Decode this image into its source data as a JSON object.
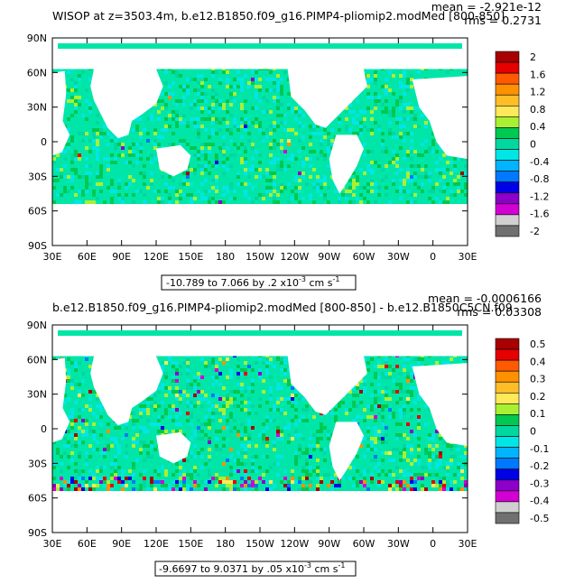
{
  "chart_data": [
    {
      "type": "heatmap",
      "title": "WISOP at z=3503.4m, b.e12.B1850.f09_g16.PIMP4-pliomip2.modMed [800-850]",
      "stats": [
        "mean = -2.921e-12",
        "rms = 0.2731"
      ],
      "range_label": "-10.789 to 7.066 by .2 x10",
      "range_exp": "-3",
      "range_units": " cm s",
      "range_units_exp": "-1",
      "x_ticks": [
        "30E",
        "60E",
        "90E",
        "120E",
        "150E",
        "180",
        "150W",
        "120W",
        "90W",
        "60W",
        "30W",
        "0",
        "30E"
      ],
      "y_ticks": [
        "90N",
        "60N",
        "30N",
        "0",
        "30S",
        "60S",
        "90S"
      ],
      "colorbar_labels": [
        "2",
        "1.6",
        "1.2",
        "0.8",
        "0.4",
        "0",
        "-0.4",
        "-0.8",
        "-1.2",
        "-1.6",
        "-2"
      ],
      "colorbar_colors": [
        "#a80000",
        "#e60000",
        "#ff5a00",
        "#ff9100",
        "#ffbe28",
        "#ffe85a",
        "#aaf032",
        "#00c850",
        "#00d8a0",
        "#00e6e6",
        "#00b4ff",
        "#0078ff",
        "#0000e6",
        "#8c00c8",
        "#d200d2",
        "#d0d0d0",
        "#707070"
      ]
    },
    {
      "type": "heatmap",
      "title": "b.e12.B1850.f09_g16.PIMP4-pliomip2.modMed [800-850] - b.e12.B1850C5CN.f09",
      "stats": [
        "mean = -0.0006166",
        "rms = 0.03308"
      ],
      "range_label": "-9.6697 to 9.0371 by .05 x10",
      "range_exp": "-3",
      "range_units": " cm s",
      "range_units_exp": "-1",
      "x_ticks": [
        "30E",
        "60E",
        "90E",
        "120E",
        "150E",
        "180",
        "150W",
        "120W",
        "90W",
        "60W",
        "30W",
        "0",
        "30E"
      ],
      "y_ticks": [
        "90N",
        "60N",
        "30N",
        "0",
        "30S",
        "60S",
        "90S"
      ],
      "colorbar_labels": [
        "0.5",
        "0.4",
        "0.3",
        "0.2",
        "0.1",
        "0",
        "-0.1",
        "-0.2",
        "-0.3",
        "-0.4",
        "-0.5"
      ],
      "colorbar_colors": [
        "#a80000",
        "#e60000",
        "#ff5a00",
        "#ff9100",
        "#ffbe28",
        "#ffe85a",
        "#aaf032",
        "#00c850",
        "#00d8a0",
        "#00e6e6",
        "#00b4ff",
        "#0078ff",
        "#0000e6",
        "#8c00c8",
        "#d200d2",
        "#d0d0d0",
        "#707070"
      ]
    }
  ]
}
